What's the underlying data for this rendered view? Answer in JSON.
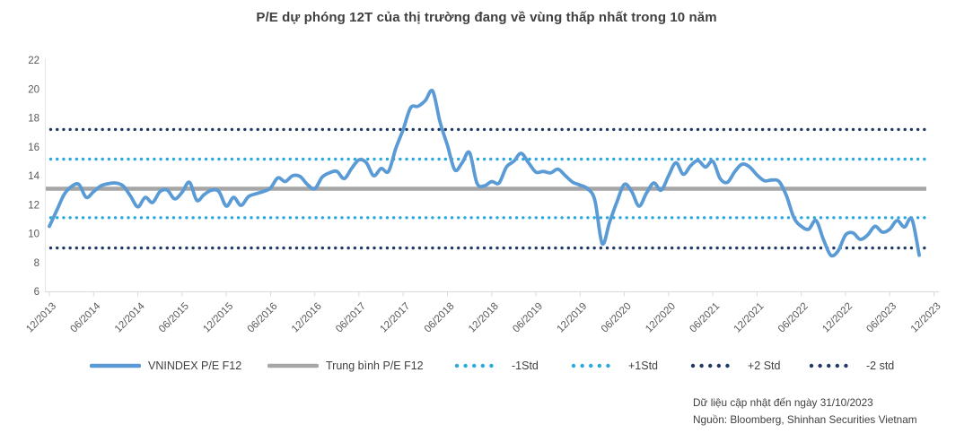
{
  "chart_data": {
    "type": "line",
    "title": "P/E dự phóng 12T của thị trường đang về vùng thấp nhất trong 10 năm",
    "xlabel": "",
    "ylabel": "",
    "ylim": [
      6,
      22
    ],
    "yticks": [
      6,
      8,
      10,
      12,
      14,
      16,
      18,
      20,
      22
    ],
    "grid": false,
    "legend_position": "bottom",
    "x_tick_labels": [
      "12/2013",
      "06/2014",
      "12/2014",
      "06/2015",
      "12/2015",
      "06/2016",
      "12/2016",
      "06/2017",
      "12/2017",
      "06/2018",
      "12/2018",
      "06/2019",
      "12/2019",
      "06/2020",
      "12/2020",
      "06/2021",
      "12/2021",
      "06/2022",
      "12/2022",
      "06/2023",
      "12/2023"
    ],
    "months_per_tick": 6,
    "series": [
      {
        "name": "VNINDEX P/E F12",
        "color": "#5B9BD5",
        "frequency": "monthly",
        "start": "12/2013",
        "end": "10/2023",
        "values": [
          10.5,
          11.6,
          12.7,
          13.25,
          13.4,
          12.5,
          12.9,
          13.3,
          13.45,
          13.5,
          13.3,
          12.6,
          11.85,
          12.5,
          12.15,
          12.9,
          13.0,
          12.4,
          12.85,
          13.55,
          12.3,
          12.7,
          13.0,
          12.9,
          11.9,
          12.5,
          11.95,
          12.55,
          12.75,
          12.9,
          13.15,
          13.85,
          13.6,
          14.0,
          13.95,
          13.4,
          13.1,
          13.9,
          14.2,
          14.3,
          13.8,
          14.5,
          15.1,
          14.9,
          14.0,
          14.5,
          14.3,
          15.9,
          17.2,
          18.7,
          18.8,
          19.2,
          19.85,
          17.7,
          16.1,
          14.4,
          14.9,
          15.6,
          13.5,
          13.3,
          13.6,
          13.5,
          14.6,
          15.0,
          15.55,
          14.9,
          14.25,
          14.3,
          14.2,
          14.45,
          14.0,
          13.55,
          13.35,
          13.1,
          12.3,
          9.3,
          10.8,
          12.2,
          13.4,
          12.9,
          11.9,
          12.8,
          13.5,
          13.0,
          14.0,
          14.9,
          14.1,
          14.7,
          15.05,
          14.6,
          15.0,
          13.8,
          13.55,
          14.3,
          14.8,
          14.6,
          14.05,
          13.65,
          13.7,
          13.6,
          12.6,
          11.1,
          10.5,
          10.3,
          10.9,
          9.6,
          8.5,
          8.8,
          9.9,
          10.05,
          9.6,
          9.9,
          10.5,
          10.1,
          10.3,
          10.9,
          10.45,
          11.0,
          8.5
        ]
      }
    ],
    "ref_lines": [
      {
        "name": "Trung bình P/E F12",
        "value": 13.1,
        "color": "#A6A6A6",
        "style": "solid"
      },
      {
        "name": "-1Std",
        "value": 11.1,
        "color": "#29A9DD",
        "style": "dotted"
      },
      {
        "name": "+1Std",
        "value": 15.15,
        "color": "#29A9DD",
        "style": "dotted"
      },
      {
        "name": "+2 Std",
        "value": 17.2,
        "color": "#1F3864",
        "style": "dotted"
      },
      {
        "name": "-2 std",
        "value": 9.0,
        "color": "#1F3864",
        "style": "dotted"
      }
    ],
    "legend": [
      {
        "label": "VNINDEX P/E F12",
        "marker": "line",
        "color": "#5B9BD5"
      },
      {
        "label": "Trung bình P/E F12",
        "marker": "line",
        "color": "#A6A6A6"
      },
      {
        "label": "-1Std",
        "marker": "dots",
        "color": "#29A9DD"
      },
      {
        "label": "+1Std",
        "marker": "dots",
        "color": "#29A9DD"
      },
      {
        "label": "+2 Std",
        "marker": "dots",
        "color": "#1F3864"
      },
      {
        "label": "-2 std",
        "marker": "dots",
        "color": "#1F3864"
      }
    ],
    "axis_color": "#D9D9D9",
    "tick_label_color": "#595959"
  },
  "notes": {
    "updated": "Dữ liệu cập nhật đến ngày 31/10/2023",
    "source": "Nguồn: Bloomberg, Shinhan Securities Vietnam"
  }
}
